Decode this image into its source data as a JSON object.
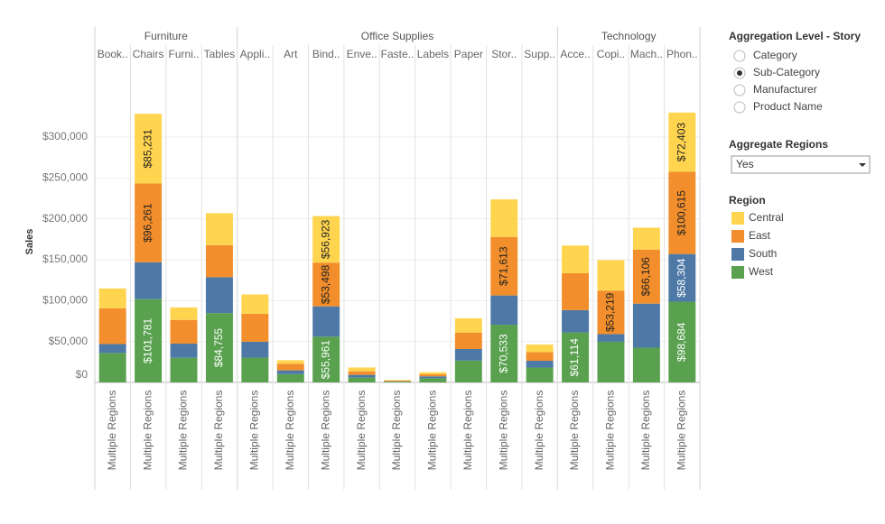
{
  "chart_data": {
    "type": "stacked_bar",
    "y_label": "Sales",
    "groups": [
      {
        "name": "Furniture",
        "count": 4
      },
      {
        "name": "Office Supplies",
        "count": 9
      },
      {
        "name": "Technology",
        "count": 4
      }
    ],
    "categories": [
      "Book..",
      "Chairs",
      "Furni..",
      "Tables",
      "Appli..",
      "Art",
      "Bind..",
      "Enve..",
      "Faste..",
      "Labels",
      "Paper",
      "Stor..",
      "Supp..",
      "Acce..",
      "Copi..",
      "Mach..",
      "Phon.."
    ],
    "row_label": "Multiple Regions",
    "legend_title": "Region",
    "series": [
      {
        "name": "Central",
        "color": "#ffd54f",
        "values": [
          24157,
          85231,
          15255,
          39155,
          23582,
          4199,
          56923,
          4637,
          699,
          2451,
          17491,
          45930,
          9467,
          33956,
          37259,
          26797,
          72403
        ],
        "value_labels": [
          null,
          "$85,231",
          null,
          null,
          null,
          null,
          "$56,923",
          null,
          null,
          null,
          null,
          null,
          null,
          null,
          null,
          null,
          "$72,403"
        ]
      },
      {
        "name": "East",
        "color": "#f28e2b",
        "values": [
          43819,
          96261,
          29071,
          39140,
          34188,
          8149,
          53498,
          4376,
          899,
          2603,
          20173,
          71613,
          10460,
          45033,
          53219,
          66106,
          100615
        ],
        "value_labels": [
          null,
          "$96,261",
          null,
          null,
          null,
          null,
          "$53,498",
          null,
          null,
          null,
          null,
          "$71,613",
          null,
          null,
          "$53,219",
          "$66,106",
          "$100,615"
        ]
      },
      {
        "name": "South",
        "color": "#4e79a7",
        "values": [
          10899,
          45176,
          17307,
          43916,
          19525,
          4655,
          37030,
          3346,
          503,
          2353,
          14151,
          35768,
          8318,
          27277,
          9300,
          53891,
          58304
        ],
        "value_labels": [
          null,
          null,
          null,
          null,
          null,
          null,
          null,
          null,
          null,
          null,
          null,
          null,
          null,
          null,
          null,
          null,
          "$58,304"
        ]
      },
      {
        "name": "West",
        "color": "#59a14f",
        "values": [
          36004,
          101781,
          30073,
          84755,
          30236,
          10116,
          55961,
          5897,
          923,
          5079,
          26664,
          70533,
          18127,
          61114,
          49750,
          42445,
          98684
        ],
        "value_labels": [
          null,
          "$101,781",
          null,
          "$84,755",
          null,
          null,
          "$55,961",
          null,
          null,
          null,
          null,
          "$70,533",
          null,
          "$61,114",
          null,
          null,
          "$98,684"
        ]
      }
    ],
    "ylim": [
      0,
      343000
    ],
    "yticks": [
      {
        "value": 0,
        "label": "$0"
      },
      {
        "value": 50000,
        "label": "$50,000"
      },
      {
        "value": 100000,
        "label": "$100,000"
      },
      {
        "value": 150000,
        "label": "$150,000"
      },
      {
        "value": 200000,
        "label": "$200,000"
      },
      {
        "value": 250000,
        "label": "$250,000"
      },
      {
        "value": 300000,
        "label": "$300,000"
      }
    ],
    "grid": true
  },
  "controls": {
    "aggregation": {
      "title": "Aggregation Level - Story",
      "options": [
        "Category",
        "Sub-Category",
        "Manufacturer",
        "Product Name"
      ],
      "selected": 1
    },
    "regions": {
      "title": "Aggregate Regions",
      "value": "Yes"
    }
  }
}
